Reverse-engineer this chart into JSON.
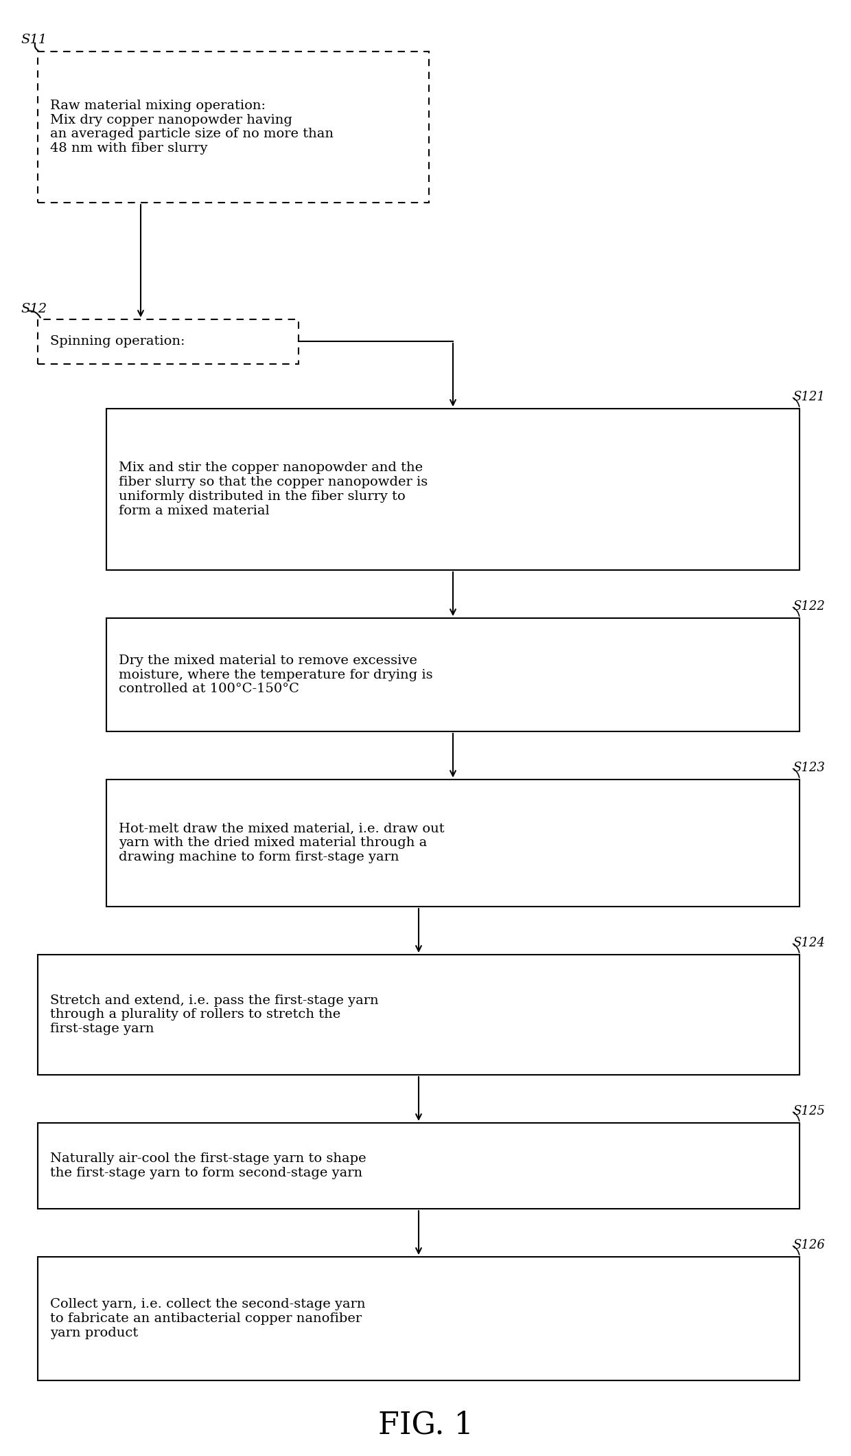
{
  "bg_color": "#ffffff",
  "fig_title": "FIG. 1",
  "fig_title_fontsize": 32,
  "s11_label": "S11",
  "s12_label": "S12",
  "box_s11": {
    "text": "Raw material mixing operation:\nMix dry copper nanopowder having\nan averaged particle size of no more than\n48 nm with fiber slurry",
    "border": "dashed"
  },
  "box_s12": {
    "text": "Spinning operation:",
    "border": "dashed"
  },
  "box_s121": {
    "text": "Mix and stir the copper nanopowder and the\nfiber slurry so that the copper nanopowder is\nuniformly distributed in the fiber slurry to\nform a mixed material",
    "label": "S121",
    "border": "solid"
  },
  "box_s122": {
    "text": "Dry the mixed material to remove excessive\nmoisture, where the temperature for drying is\ncontrolled at 100°C-150°C",
    "label": "S122",
    "border": "solid"
  },
  "box_s123": {
    "text": "Hot-melt draw the mixed material, i.e. draw out\nyarn with the dried mixed material through a\ndrawing machine to form first-stage yarn",
    "label": "S123",
    "border": "solid"
  },
  "box_s124": {
    "text": "Stretch and extend, i.e. pass the first-stage yarn\nthrough a plurality of rollers to stretch the\nfirst-stage yarn",
    "label": "S124",
    "border": "solid"
  },
  "box_s125": {
    "text": "Naturally air-cool the first-stage yarn to shape\nthe first-stage yarn to form second-stage yarn",
    "label": "S125",
    "border": "solid"
  },
  "box_s126": {
    "text": "Collect yarn, i.e. collect the second-stage yarn\nto fabricate an antibacterial copper nanofiber\nyarn product",
    "label": "S126",
    "border": "solid"
  }
}
